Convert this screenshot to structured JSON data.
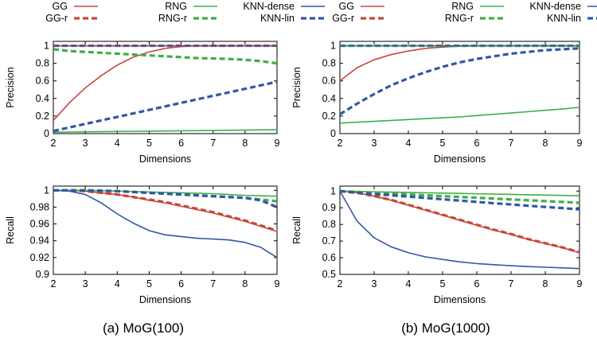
{
  "colors": {
    "GG": "#c8463a",
    "RNG": "#3fae49",
    "KNN": "#2f58a6",
    "axis": "#000000",
    "grid": "#c8c8c8"
  },
  "captions": [
    "(a)  MoG(100)",
    "(b)  MoG(1000)"
  ],
  "legend": [
    {
      "label": "GG",
      "series": "GG"
    },
    {
      "label": "RNG",
      "series": "RNG"
    },
    {
      "label": "KNN-dense",
      "series": "KNN-dense"
    },
    {
      "label": "GG-r",
      "series": "GG-r"
    },
    {
      "label": "RNG-r",
      "series": "RNG-r"
    },
    {
      "label": "KNN-lin",
      "series": "KNN-lin"
    }
  ],
  "chart_data": [
    {
      "type": "line",
      "panel": "a-precision",
      "xlabel": "Dimensions",
      "ylabel": "Precision",
      "xlim": [
        2,
        9
      ],
      "ylim": [
        0,
        1.05
      ],
      "xticks": [
        "2",
        "3",
        "4",
        "5",
        "6",
        "7",
        "8",
        "9"
      ],
      "yticks": [
        "0",
        "0.2",
        "0.4",
        "0.6",
        "0.8",
        "1"
      ],
      "yticks_values": [
        0,
        0.2,
        0.4,
        0.6,
        0.8,
        1
      ],
      "x": [
        2,
        2.5,
        3,
        3.5,
        4,
        4.5,
        5,
        5.5,
        6,
        6.5,
        7,
        7.5,
        8,
        8.5,
        9
      ],
      "series": [
        {
          "name": "GG",
          "color": "GG",
          "dashed": false,
          "values": [
            0.15,
            0.35,
            0.52,
            0.66,
            0.78,
            0.87,
            0.93,
            0.97,
            0.99,
            1.0,
            1.0,
            1.0,
            1.0,
            1.0,
            1.0
          ]
        },
        {
          "name": "GG-r",
          "color": "GG",
          "dashed": true,
          "values": [
            1,
            1,
            1,
            1,
            1,
            1,
            1,
            1,
            1,
            1,
            1,
            1,
            1,
            1,
            1
          ]
        },
        {
          "name": "RNG",
          "color": "RNG",
          "dashed": false,
          "values": [
            0.015,
            0.018,
            0.02,
            0.022,
            0.024,
            0.026,
            0.028,
            0.03,
            0.032,
            0.034,
            0.036,
            0.038,
            0.04,
            0.042,
            0.045
          ]
        },
        {
          "name": "RNG-r",
          "color": "RNG",
          "dashed": true,
          "values": [
            0.96,
            0.94,
            0.93,
            0.92,
            0.91,
            0.9,
            0.89,
            0.88,
            0.87,
            0.86,
            0.855,
            0.85,
            0.84,
            0.825,
            0.8
          ]
        },
        {
          "name": "KNN-dense",
          "color": "KNN",
          "dashed": false,
          "values": [
            1,
            1,
            1,
            1,
            1,
            1,
            1,
            1,
            1,
            1,
            1,
            1,
            1,
            1,
            1
          ]
        },
        {
          "name": "KNN-lin",
          "color": "KNN",
          "dashed": true,
          "values": [
            0.03,
            0.07,
            0.11,
            0.15,
            0.19,
            0.23,
            0.27,
            0.31,
            0.35,
            0.39,
            0.43,
            0.47,
            0.51,
            0.55,
            0.59
          ]
        }
      ]
    },
    {
      "type": "line",
      "panel": "b-precision",
      "xlabel": "Dimensions",
      "ylabel": "Precision",
      "xlim": [
        2,
        9
      ],
      "ylim": [
        0,
        1.05
      ],
      "xticks": [
        "2",
        "3",
        "4",
        "5",
        "6",
        "7",
        "8",
        "9"
      ],
      "yticks": [
        "0",
        "0.2",
        "0.4",
        "0.6",
        "0.8",
        "1"
      ],
      "yticks_values": [
        0,
        0.2,
        0.4,
        0.6,
        0.8,
        1
      ],
      "x": [
        2,
        2.5,
        3,
        3.5,
        4,
        4.5,
        5,
        5.5,
        6,
        6.5,
        7,
        7.5,
        8,
        8.5,
        9
      ],
      "series": [
        {
          "name": "GG",
          "color": "GG",
          "dashed": false,
          "values": [
            0.6,
            0.75,
            0.84,
            0.9,
            0.94,
            0.97,
            0.985,
            0.995,
            1.0,
            1.0,
            1.0,
            1.0,
            1.0,
            1.0,
            1.0
          ]
        },
        {
          "name": "GG-r",
          "color": "GG",
          "dashed": true,
          "values": [
            1,
            1,
            1,
            1,
            1,
            1,
            1,
            1,
            1,
            1,
            1,
            1,
            1,
            1,
            1
          ]
        },
        {
          "name": "RNG",
          "color": "RNG",
          "dashed": false,
          "values": [
            0.12,
            0.13,
            0.14,
            0.15,
            0.16,
            0.17,
            0.18,
            0.19,
            0.205,
            0.22,
            0.235,
            0.25,
            0.265,
            0.28,
            0.3
          ]
        },
        {
          "name": "RNG-r",
          "color": "RNG",
          "dashed": true,
          "values": [
            1,
            1,
            1,
            1,
            1,
            1,
            1,
            1,
            1,
            1,
            1,
            1,
            1,
            1,
            1
          ]
        },
        {
          "name": "KNN-dense",
          "color": "KNN",
          "dashed": false,
          "values": [
            1,
            1,
            1,
            1,
            1,
            1,
            1,
            1,
            1,
            1,
            1,
            1,
            1,
            1,
            1
          ]
        },
        {
          "name": "KNN-lin",
          "color": "KNN",
          "dashed": true,
          "values": [
            0.22,
            0.34,
            0.45,
            0.55,
            0.63,
            0.7,
            0.76,
            0.81,
            0.85,
            0.88,
            0.91,
            0.93,
            0.95,
            0.96,
            0.97
          ]
        }
      ]
    },
    {
      "type": "line",
      "panel": "a-recall",
      "xlabel": "Dimensions",
      "ylabel": "Recall",
      "xlim": [
        2,
        9
      ],
      "ylim": [
        0.9,
        1.005
      ],
      "xticks": [
        "2",
        "3",
        "4",
        "5",
        "6",
        "7",
        "8",
        "9"
      ],
      "yticks": [
        "0.9",
        "0.92",
        "0.94",
        "0.96",
        "0.98",
        "1"
      ],
      "yticks_values": [
        0.9,
        0.92,
        0.94,
        0.96,
        0.98,
        1
      ],
      "x": [
        2,
        2.5,
        3,
        3.5,
        4,
        4.5,
        5,
        5.5,
        6,
        6.5,
        7,
        7.5,
        8,
        8.5,
        9
      ],
      "series": [
        {
          "name": "GG",
          "color": "GG",
          "dashed": false,
          "values": [
            1.0,
            1.0,
            0.999,
            0.997,
            0.995,
            0.992,
            0.988,
            0.985,
            0.981,
            0.977,
            0.973,
            0.968,
            0.963,
            0.957,
            0.951
          ]
        },
        {
          "name": "GG-r",
          "color": "GG",
          "dashed": true,
          "values": [
            1.0,
            1.0,
            0.999,
            0.997,
            0.995,
            0.992,
            0.989,
            0.986,
            0.982,
            0.978,
            0.974,
            0.969,
            0.964,
            0.958,
            0.952
          ]
        },
        {
          "name": "RNG",
          "color": "RNG",
          "dashed": false,
          "values": [
            1.0,
            1.0,
            1.0,
            0.9995,
            0.999,
            0.9985,
            0.998,
            0.9975,
            0.997,
            0.9965,
            0.996,
            0.995,
            0.994,
            0.9935,
            0.993
          ]
        },
        {
          "name": "RNG-r",
          "color": "RNG",
          "dashed": true,
          "values": [
            1.0,
            1.0,
            1.0,
            0.9995,
            0.999,
            0.998,
            0.997,
            0.996,
            0.995,
            0.994,
            0.993,
            0.992,
            0.991,
            0.989,
            0.987
          ]
        },
        {
          "name": "KNN-dense",
          "color": "KNN",
          "dashed": false,
          "values": [
            1.0,
            0.999,
            0.995,
            0.985,
            0.972,
            0.961,
            0.952,
            0.947,
            0.945,
            0.943,
            0.942,
            0.941,
            0.938,
            0.932,
            0.92
          ]
        },
        {
          "name": "KNN-lin",
          "color": "KNN",
          "dashed": true,
          "values": [
            1.0,
            1.0,
            1.0,
            0.9995,
            0.999,
            0.998,
            0.997,
            0.996,
            0.995,
            0.994,
            0.993,
            0.992,
            0.991,
            0.988,
            0.98
          ]
        }
      ]
    },
    {
      "type": "line",
      "panel": "b-recall",
      "xlabel": "Dimensions",
      "ylabel": "Recall",
      "xlim": [
        2,
        9
      ],
      "ylim": [
        0.5,
        1.03
      ],
      "xticks": [
        "2",
        "3",
        "4",
        "5",
        "6",
        "7",
        "8",
        "9"
      ],
      "yticks": [
        "0.5",
        "0.6",
        "0.7",
        "0.8",
        "0.9",
        "1"
      ],
      "yticks_values": [
        0.5,
        0.6,
        0.7,
        0.8,
        0.9,
        1
      ],
      "x": [
        2,
        2.5,
        3,
        3.5,
        4,
        4.5,
        5,
        5.5,
        6,
        6.5,
        7,
        7.5,
        8,
        8.5,
        9
      ],
      "series": [
        {
          "name": "GG",
          "color": "GG",
          "dashed": false,
          "values": [
            1.0,
            0.99,
            0.97,
            0.945,
            0.915,
            0.885,
            0.855,
            0.825,
            0.795,
            0.765,
            0.74,
            0.71,
            0.685,
            0.66,
            0.63
          ]
        },
        {
          "name": "GG-r",
          "color": "GG",
          "dashed": true,
          "values": [
            1.0,
            0.99,
            0.97,
            0.947,
            0.918,
            0.888,
            0.858,
            0.828,
            0.798,
            0.768,
            0.742,
            0.712,
            0.687,
            0.662,
            0.633
          ]
        },
        {
          "name": "RNG",
          "color": "RNG",
          "dashed": false,
          "values": [
            1.0,
            0.998,
            0.996,
            0.994,
            0.992,
            0.99,
            0.988,
            0.986,
            0.984,
            0.982,
            0.98,
            0.978,
            0.976,
            0.974,
            0.972
          ]
        },
        {
          "name": "RNG-r",
          "color": "RNG",
          "dashed": true,
          "values": [
            1.0,
            0.995,
            0.99,
            0.985,
            0.98,
            0.975,
            0.97,
            0.965,
            0.96,
            0.955,
            0.95,
            0.945,
            0.94,
            0.935,
            0.93
          ]
        },
        {
          "name": "KNN-dense",
          "color": "KNN",
          "dashed": false,
          "values": [
            1.0,
            0.82,
            0.72,
            0.665,
            0.63,
            0.605,
            0.59,
            0.575,
            0.565,
            0.558,
            0.552,
            0.547,
            0.543,
            0.539,
            0.535
          ]
        },
        {
          "name": "KNN-lin",
          "color": "KNN",
          "dashed": true,
          "values": [
            1.0,
            0.99,
            0.982,
            0.975,
            0.967,
            0.959,
            0.951,
            0.943,
            0.935,
            0.927,
            0.92,
            0.912,
            0.905,
            0.898,
            0.89
          ]
        }
      ]
    }
  ]
}
